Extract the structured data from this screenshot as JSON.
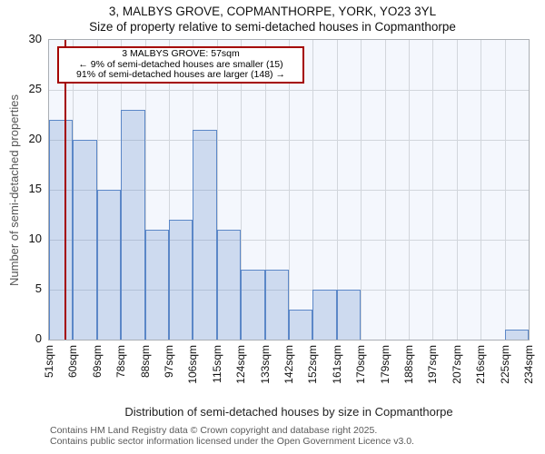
{
  "title": "3, MALBYS GROVE, COPMANTHORPE, YORK, YO23 3YL",
  "subtitle": "Size of property relative to semi-detached houses in Copmanthorpe",
  "annotation": {
    "line1": "3 MALBYS GROVE: 57sqm",
    "line2": "← 9% of semi-detached houses are smaller (15)",
    "line3": "91% of semi-detached houses are larger (148) →"
  },
  "chart_data": {
    "type": "bar",
    "title": "3, MALBYS GROVE, COPMANTHORPE, YORK, YO23 3YL",
    "subtitle": "Size of property relative to semi-detached houses in Copmanthorpe",
    "xlabel": "Distribution of semi-detached houses by size in Copmanthorpe",
    "ylabel": "Number of semi-detached properties",
    "bin_edge_labels": [
      "51sqm",
      "60sqm",
      "69sqm",
      "78sqm",
      "88sqm",
      "97sqm",
      "106sqm",
      "115sqm",
      "124sqm",
      "133sqm",
      "142sqm",
      "152sqm",
      "161sqm",
      "170sqm",
      "179sqm",
      "188sqm",
      "197sqm",
      "207sqm",
      "216sqm",
      "225sqm",
      "234sqm"
    ],
    "values": [
      22,
      20,
      15,
      23,
      11,
      12,
      21,
      11,
      7,
      7,
      3,
      5,
      5,
      0,
      0,
      0,
      0,
      0,
      0,
      1
    ],
    "ylim": [
      0,
      30
    ],
    "yticks": [
      0,
      5,
      10,
      15,
      20,
      25,
      30
    ],
    "grid": true,
    "legend": "none",
    "marker_sqm": 57,
    "colors": {
      "bar_fill": "rgba(91,135,199,0.26)",
      "bar_edge": "#5b87c7",
      "marker_line": "#a40000",
      "annotation_border": "#a40000",
      "plot_background": "#f4f7fd",
      "gridline": "#d2d6dc"
    }
  },
  "footer": {
    "line1": "Contains HM Land Registry data © Crown copyright and database right 2025.",
    "line2": "Contains public sector information licensed under the Open Government Licence v3.0."
  }
}
